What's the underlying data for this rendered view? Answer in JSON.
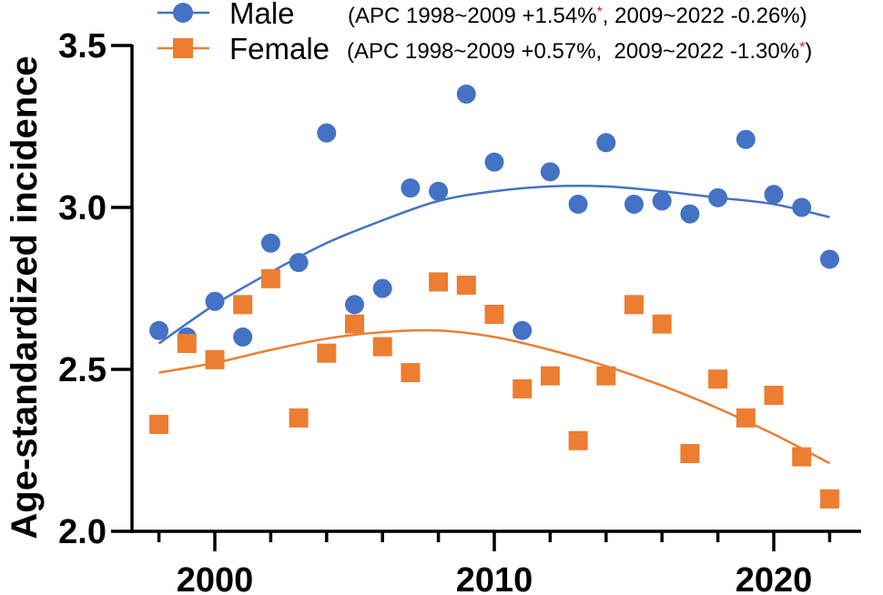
{
  "chart_data": {
    "type": "scatter",
    "title": "",
    "xlabel": "",
    "ylabel": "Age-standardized incidence",
    "xlim": [
      1997.8,
      2023.1
    ],
    "ylim": [
      2.0,
      3.5
    ],
    "xticks_major": [
      2000,
      2010,
      2020
    ],
    "xticks_major_labels": [
      "2000",
      "2010",
      "2020"
    ],
    "xticks_minor": [
      1998,
      2002,
      2004,
      2006,
      2008,
      2012,
      2014,
      2016,
      2018,
      2022
    ],
    "yticks": [
      2.0,
      2.5,
      3.0,
      3.5
    ],
    "ytick_labels": [
      "2.0",
      "2.5",
      "3.0",
      "3.5"
    ],
    "grid": false,
    "legend_position": "top",
    "x": [
      1998,
      1999,
      2000,
      2001,
      2002,
      2003,
      2004,
      2005,
      2006,
      2007,
      2008,
      2009,
      2010,
      2011,
      2012,
      2013,
      2014,
      2015,
      2016,
      2017,
      2018,
      2019,
      2020,
      2021,
      2022
    ],
    "series": [
      {
        "name": "Male",
        "marker": "circle",
        "color": "#4472c4",
        "apc_text": "(APC 1998~2009 +1.54%",
        "apc_star_1": "*",
        "apc_text_2": ", 2009~2022 -0.26%)",
        "apc_star_2": "",
        "apc_text_3": "",
        "values": [
          2.62,
          2.6,
          2.71,
          2.6,
          2.89,
          2.83,
          3.23,
          2.7,
          2.75,
          3.06,
          3.05,
          3.35,
          3.14,
          2.62,
          3.11,
          3.01,
          3.2,
          3.01,
          3.02,
          2.98,
          3.03,
          3.21,
          3.04,
          3.0,
          2.84
        ],
        "trend": {
          "x": [
            1998,
            2000,
            2002,
            2004,
            2006,
            2008,
            2010,
            2012,
            2014,
            2016,
            2018,
            2020,
            2022
          ],
          "y": [
            2.58,
            2.7,
            2.8,
            2.89,
            2.96,
            3.02,
            3.05,
            3.065,
            3.065,
            3.05,
            3.03,
            3.01,
            2.97
          ]
        }
      },
      {
        "name": "Female",
        "marker": "square",
        "color": "#ed7d31",
        "apc_text": "(APC 1998~2009 +0.57%,  2009~2022 -1.30%",
        "apc_star_1": "*",
        "apc_text_2": ")",
        "values": [
          2.33,
          2.58,
          2.53,
          2.7,
          2.78,
          2.35,
          2.55,
          2.64,
          2.57,
          2.49,
          2.77,
          2.76,
          2.67,
          2.44,
          2.48,
          2.28,
          2.48,
          2.7,
          2.64,
          2.24,
          2.47,
          2.35,
          2.42,
          2.23,
          2.1
        ],
        "trend": {
          "x": [
            1998,
            2000,
            2002,
            2004,
            2006,
            2008,
            2010,
            2012,
            2014,
            2016,
            2018,
            2020,
            2022
          ],
          "y": [
            2.49,
            2.52,
            2.56,
            2.595,
            2.615,
            2.62,
            2.6,
            2.56,
            2.51,
            2.45,
            2.38,
            2.3,
            2.21
          ]
        }
      }
    ]
  }
}
